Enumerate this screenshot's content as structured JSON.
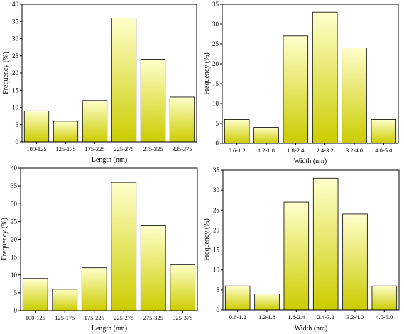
{
  "chart_data": [
    {
      "type": "bar",
      "categories": [
        "100-125",
        "125-175",
        "175-225",
        "225-275",
        "275-325",
        "325-375"
      ],
      "values": [
        9,
        6,
        12,
        36,
        24,
        13
      ],
      "xlabel": "Length (nm)",
      "ylabel": "Frequency (%)",
      "ylim": [
        0,
        40
      ],
      "yticks": [
        0,
        5,
        10,
        15,
        20,
        25,
        30,
        35,
        40
      ],
      "grid": false
    },
    {
      "type": "bar",
      "categories": [
        "0.6-1.2",
        "1.2-1.8",
        "1.8-2.4",
        "2.4-3.2",
        "3.2-4.0",
        "4.0-5.0"
      ],
      "values": [
        6,
        4,
        27,
        33,
        24,
        6
      ],
      "xlabel": "Width (nm)",
      "ylabel": "Frequency (%)",
      "ylim": [
        0,
        35
      ],
      "yticks": [
        0,
        5,
        10,
        15,
        20,
        25,
        30,
        35
      ],
      "grid": false
    },
    {
      "type": "bar",
      "categories": [
        "100-125",
        "125-175",
        "175-225",
        "225-275",
        "275-325",
        "325-375"
      ],
      "values": [
        9,
        6,
        12,
        36,
        24,
        13
      ],
      "xlabel": "Length (nm)",
      "ylabel": "Frequency (%)",
      "ylim": [
        0,
        40
      ],
      "yticks": [
        0,
        5,
        10,
        15,
        20,
        25,
        30,
        35,
        40
      ],
      "grid": false
    },
    {
      "type": "bar",
      "categories": [
        "0.6-1.2",
        "1.2-1.8",
        "1.8-2.4",
        "2.4-3.2",
        "3.2-4.0",
        "4.0-5.0"
      ],
      "values": [
        6,
        4,
        27,
        33,
        24,
        6
      ],
      "xlabel": "Width (nm)",
      "ylabel": "Frequency (%)",
      "ylim": [
        0,
        35
      ],
      "yticks": [
        0,
        5,
        10,
        15,
        20,
        25,
        30,
        35
      ],
      "grid": false
    }
  ],
  "colors": {
    "bar_top": "#ffffcc",
    "bar_bottom": "#cccc00",
    "bar_stroke": "#000000",
    "axis": "#000000"
  }
}
